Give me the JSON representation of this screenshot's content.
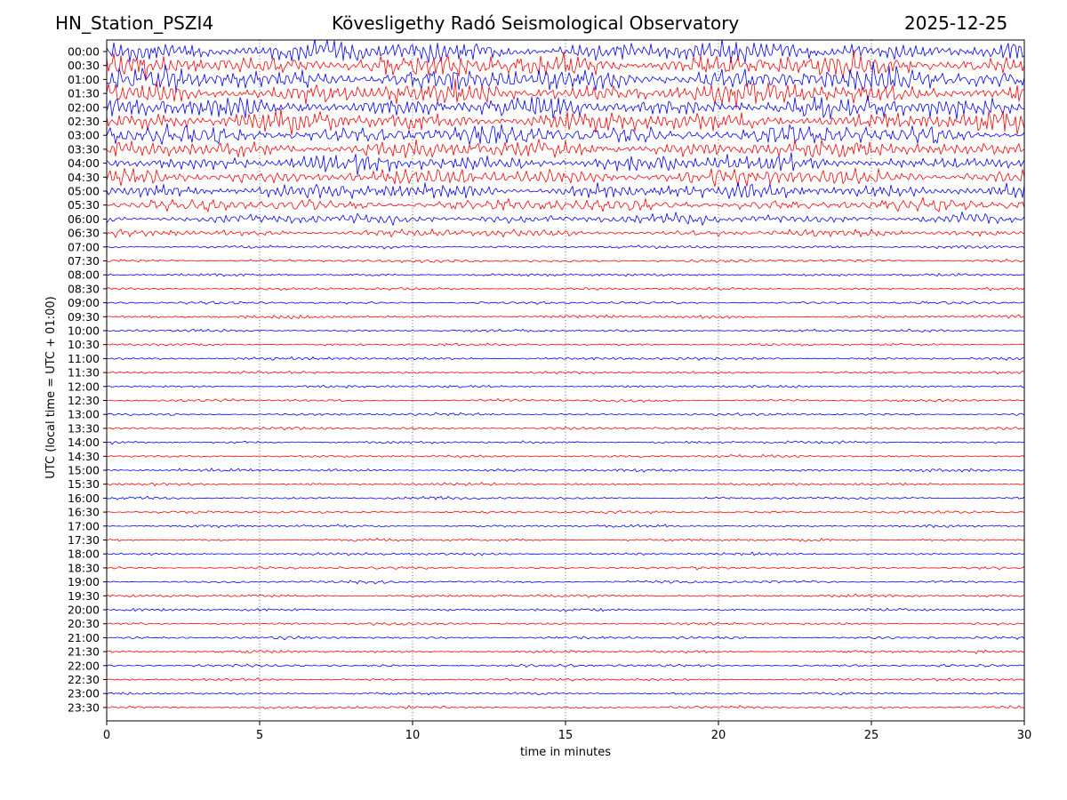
{
  "header": {
    "station": "HN_Station_PSZI4",
    "observatory": "Kövesligethy Radó Seismological Observatory",
    "date": "2025-12-25"
  },
  "chart_data": {
    "type": "line",
    "title": "",
    "xlabel": "time in minutes",
    "ylabel": "UTC (local time = UTC + 01:00)",
    "xlim": [
      0,
      30
    ],
    "x_ticks": [
      0,
      5,
      10,
      15,
      20,
      25,
      30
    ],
    "grid": "vertical dotted lines at each x tick",
    "row_labels": [
      "00:00",
      "00:30",
      "01:00",
      "01:30",
      "02:00",
      "02:30",
      "03:00",
      "03:30",
      "04:00",
      "04:30",
      "05:00",
      "05:30",
      "06:00",
      "06:30",
      "07:00",
      "07:30",
      "08:00",
      "08:30",
      "09:00",
      "09:30",
      "10:00",
      "10:30",
      "11:00",
      "11:30",
      "12:00",
      "12:30",
      "13:00",
      "13:30",
      "14:00",
      "14:30",
      "15:00",
      "15:30",
      "16:00",
      "16:30",
      "17:00",
      "17:30",
      "18:00",
      "18:30",
      "19:00",
      "19:30",
      "20:00",
      "20:30",
      "21:00",
      "21:30",
      "22:00",
      "22:30",
      "23:00",
      "23:30"
    ],
    "row_colors": [
      "#0000ff",
      "#ff0000"
    ],
    "relative_amplitude": [
      5.0,
      5.0,
      5.0,
      4.8,
      4.6,
      4.4,
      4.2,
      4.0,
      3.8,
      3.6,
      3.4,
      2.6,
      2.2,
      1.6,
      0.7,
      0.7,
      0.6,
      0.6,
      0.6,
      0.75,
      0.6,
      0.6,
      0.65,
      0.6,
      0.6,
      0.6,
      0.6,
      0.65,
      0.6,
      0.6,
      0.65,
      0.6,
      0.6,
      0.6,
      0.6,
      0.6,
      0.6,
      0.6,
      0.6,
      0.65,
      0.6,
      0.6,
      0.6,
      0.6,
      0.6,
      0.6,
      0.6,
      0.65
    ]
  }
}
